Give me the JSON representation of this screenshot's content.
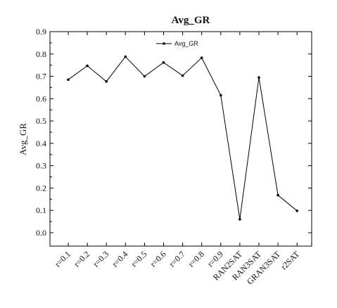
{
  "chart_data": {
    "type": "line",
    "title": "Avg_GR",
    "ylabel": "Avg_GR",
    "xlabel": "",
    "categories": [
      "r=0.1",
      "r=0.2",
      "r=0.3",
      "r=0.4",
      "r=0.5",
      "r=0.6",
      "r=0.7",
      "r=0.8",
      "r=0.9",
      "RAN2SAT",
      "RAN3SAT",
      "GRAN3SAT",
      "r2SAT"
    ],
    "series": [
      {
        "name": "Avg_GR",
        "values": [
          0.685,
          0.747,
          0.677,
          0.788,
          0.7,
          0.762,
          0.703,
          0.783,
          0.615,
          0.06,
          0.695,
          0.168,
          0.098
        ]
      }
    ],
    "ylim": [
      -0.06,
      0.9
    ],
    "yticks": [
      0.0,
      0.1,
      0.2,
      0.3,
      0.4,
      0.5,
      0.6,
      0.7,
      0.8,
      0.9
    ],
    "ytick_labels": [
      "0.0",
      "0.1",
      "0.2",
      "0.3",
      "0.4",
      "0.5",
      "0.6",
      "0.7",
      "0.8",
      "0.9"
    ],
    "grid": false,
    "legend_position": "top",
    "line_color": "#000000"
  }
}
